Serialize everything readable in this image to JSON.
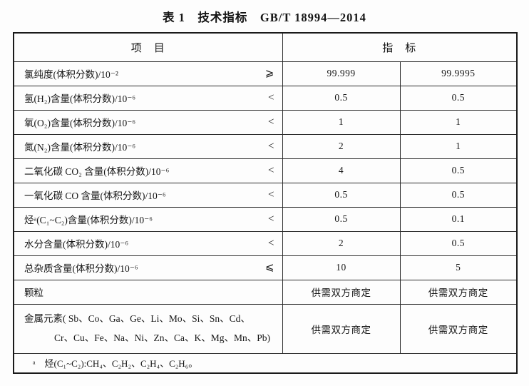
{
  "title": "表 1　技术指标　GB/T 18994—2014",
  "table": {
    "header": {
      "item": "项　目",
      "indicator": "指　标"
    },
    "rows": [
      {
        "item": "氯纯度(体积分数)/10⁻²",
        "symbol": "⩾",
        "v1": "99.999",
        "v2": "99.9995"
      },
      {
        "item": "氢(H₂)含量(体积分数)/10⁻⁶",
        "symbol": "<",
        "v1": "0.5",
        "v2": "0.5"
      },
      {
        "item": "氧(O₂)含量(体积分数)/10⁻⁶",
        "symbol": "<",
        "v1": "1",
        "v2": "1"
      },
      {
        "item": "氮(N₂)含量(体积分数)/10⁻⁶",
        "symbol": "<",
        "v1": "2",
        "v2": "1"
      },
      {
        "item": "二氧化碳 CO₂ 含量(体积分数)/10⁻⁶",
        "symbol": "<",
        "v1": "4",
        "v2": "0.5"
      },
      {
        "item": "一氧化碳 CO 含量(体积分数)/10⁻⁶",
        "symbol": "<",
        "v1": "0.5",
        "v2": "0.5"
      },
      {
        "item": "烃ᵃ(C₁~C₂)含量(体积分数)/10⁻⁶",
        "symbol": "<",
        "v1": "0.5",
        "v2": "0.1"
      },
      {
        "item": "水分含量(体积分数)/10⁻⁶",
        "symbol": "<",
        "v1": "2",
        "v2": "0.5"
      },
      {
        "item": "总杂质含量(体积分数)/10⁻⁶",
        "symbol": "⩽",
        "v1": "10",
        "v2": "5"
      },
      {
        "item": "颗粒",
        "symbol": "",
        "v1": "供需双方商定",
        "v2": "供需双方商定"
      },
      {
        "item_line1": "金属元素( Sb、Co、Ga、Ge、Li、Mo、Si、Sn、Cd、",
        "item_line2": "Cr、Cu、Fe、Na、Ni、Zn、Ca、K、Mg、Mn、Pb)",
        "symbol": "",
        "v1": "供需双方商定",
        "v2": "供需双方商定"
      }
    ],
    "footnote": "ᵃ　烃(C₁~C₂):CH₄、C₂H₂、C₂H₄、C₂H₆。"
  }
}
